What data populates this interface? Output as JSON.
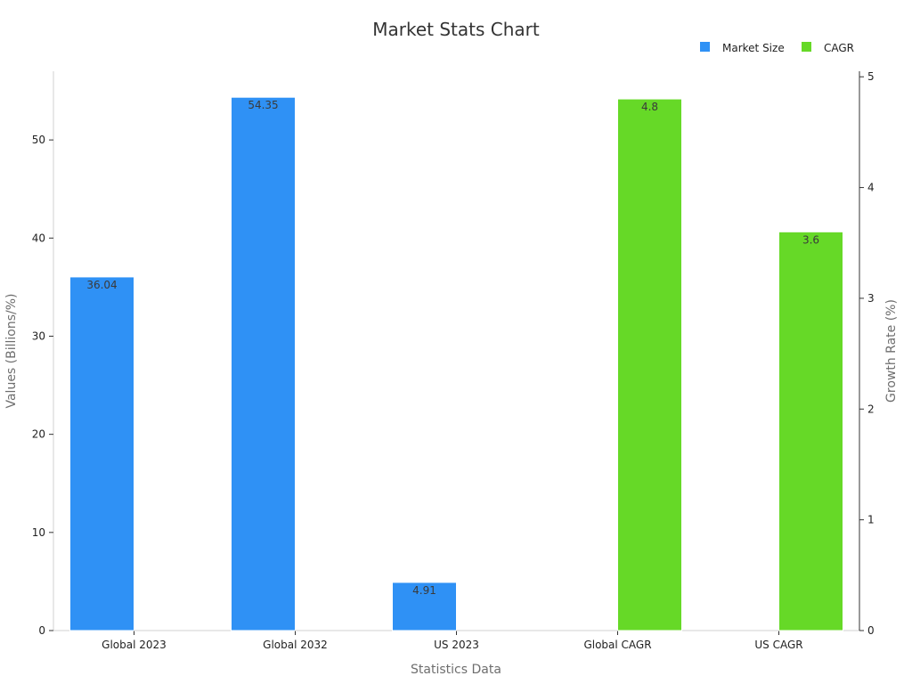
{
  "chart_data": {
    "type": "bar",
    "title": "Market Stats Chart",
    "xlabel": "Statistics Data",
    "ylabel": "Values (Billions/%)",
    "y2label": "Growth Rate (%)",
    "categories": [
      "Global 2023",
      "Global 2032",
      "US 2023",
      "Global CAGR",
      "US CAGR"
    ],
    "series": [
      {
        "name": "Market Size",
        "axis": "left",
        "color": "#2f91f5",
        "values": [
          36.04,
          54.35,
          4.91,
          null,
          null
        ],
        "labels": [
          "36.04",
          "54.35",
          "4.91",
          "",
          ""
        ]
      },
      {
        "name": "CAGR",
        "axis": "right",
        "color": "#66d927",
        "values": [
          null,
          null,
          null,
          4.8,
          3.6
        ],
        "labels": [
          "",
          "",
          "",
          "4.8",
          "3.6"
        ]
      }
    ],
    "ylim": [
      0,
      57
    ],
    "yticks": [
      0,
      10,
      20,
      30,
      40,
      50
    ],
    "y2lim": [
      0,
      5.05
    ],
    "y2ticks": [
      0,
      1,
      2,
      3,
      4,
      5
    ],
    "legend_position": "top-right",
    "grid": false
  }
}
